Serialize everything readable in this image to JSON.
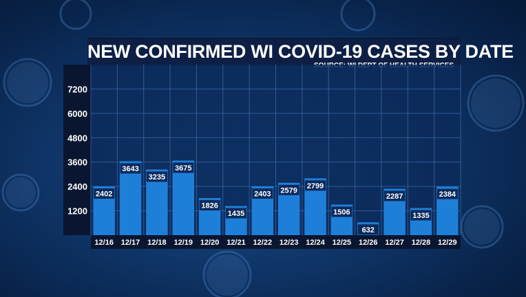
{
  "chart_data": {
    "type": "bar",
    "title": "NEW CONFIRMED WI COVID-19 CASES BY DATE",
    "source": "SOURCE: WI DEPT OF HEALTH SERVICES",
    "categories": [
      "12/16",
      "12/17",
      "12/18",
      "12/19",
      "12/20",
      "12/21",
      "12/22",
      "12/23",
      "12/24",
      "12/25",
      "12/26",
      "12/27",
      "12/28",
      "12/29"
    ],
    "values": [
      2402,
      3643,
      3235,
      3675,
      1826,
      1435,
      2403,
      2579,
      2799,
      1506,
      632,
      2287,
      1335,
      2384
    ],
    "yticks": [
      1200,
      2400,
      3600,
      4800,
      6000,
      7200
    ],
    "ylim": [
      0,
      8400
    ],
    "grid": true,
    "legend": "none",
    "colors": {
      "bar": "#1e7fd8",
      "bar_label_bg": "#0b2a5c",
      "grid": "#3d6fb0",
      "plot_bg": "#0c2a5a",
      "axis_bg": "#0a1630",
      "text": "#ffffff"
    }
  }
}
